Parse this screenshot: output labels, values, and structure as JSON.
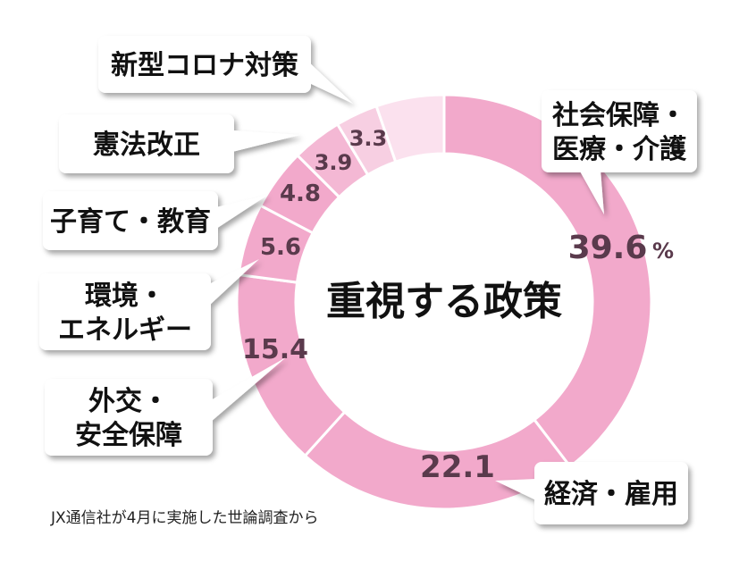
{
  "chart_data": {
    "type": "pie",
    "title": "重視する政策",
    "unit": "%",
    "slices": [
      {
        "label": [
          "社会保障・",
          "医療・介護"
        ],
        "value": 39.6,
        "value_text": "39.6",
        "color": "#f2a9cb"
      },
      {
        "label": [
          "経済・雇用"
        ],
        "value": 22.1,
        "value_text": "22.1",
        "color": "#f2a9cb"
      },
      {
        "label": [
          "外交・",
          "安全保障"
        ],
        "value": 15.4,
        "value_text": "15.4",
        "color": "#f2a9cb"
      },
      {
        "label": [
          "環境・",
          "エネルギー"
        ],
        "value": 5.6,
        "value_text": "5.6",
        "color": "#f2a9cb"
      },
      {
        "label": [
          "子育て・教育"
        ],
        "value": 4.8,
        "value_text": "4.8",
        "color": "#f2a9cb"
      },
      {
        "label": [
          "憲法改正"
        ],
        "value": 3.9,
        "value_text": "3.9",
        "color": "#f4b8d4"
      },
      {
        "label": [
          "新型コロナ対策"
        ],
        "value": 3.3,
        "value_text": "3.3",
        "color": "#f7cfe2"
      }
    ],
    "remainder_color": "#fbe1ee",
    "legend": "callouts"
  },
  "source_note": "JX通信社が4月に実施した世論調査から"
}
